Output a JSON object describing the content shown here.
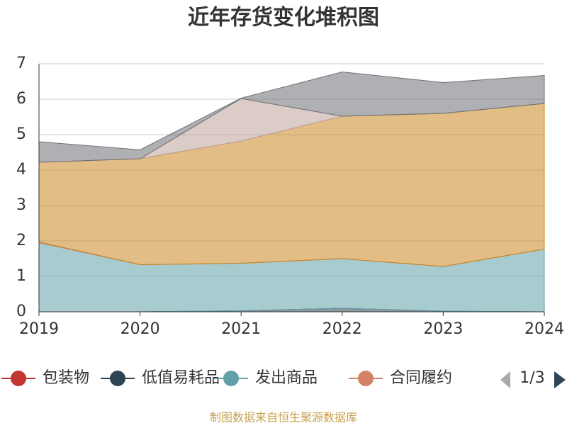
{
  "chart_data": {
    "type": "stacked-area",
    "title": "近年存货变化堆积图",
    "x": [
      "2019",
      "2020",
      "2021",
      "2022",
      "2023",
      "2024"
    ],
    "ylim": [
      0,
      7
    ],
    "yticks": [
      0,
      1,
      2,
      3,
      4,
      5,
      6,
      7
    ],
    "grid": true,
    "series": [
      {
        "name": "包装物",
        "color": "#c23531",
        "values": [
          0,
          0,
          0,
          0,
          0,
          0
        ]
      },
      {
        "name": "低值易耗品",
        "color": "#2f4554",
        "values": [
          0,
          0,
          0.03,
          0.1,
          0.02,
          0
        ]
      },
      {
        "name": "发出商品",
        "color": "#61a0a8",
        "values": [
          1.95,
          1.33,
          1.34,
          1.4,
          1.26,
          1.77
        ]
      },
      {
        "name": "合同履约",
        "color": "#d48265",
        "values": [
          0.02,
          0,
          0,
          0,
          0,
          0
        ]
      },
      {
        "color": "#ca8622",
        "values": [
          2.25,
          2.99,
          3.45,
          4.02,
          4.32,
          4.11
        ]
      },
      {
        "color": "#bda29a",
        "values": [
          0,
          0,
          1.2,
          0,
          0,
          0
        ]
      },
      {
        "color": "#6e7074",
        "values": [
          0.58,
          0.25,
          0.01,
          1.25,
          0.87,
          0.79
        ]
      }
    ],
    "legend_page": "1/3",
    "source": "制图数据来自恒生聚源数据库"
  }
}
